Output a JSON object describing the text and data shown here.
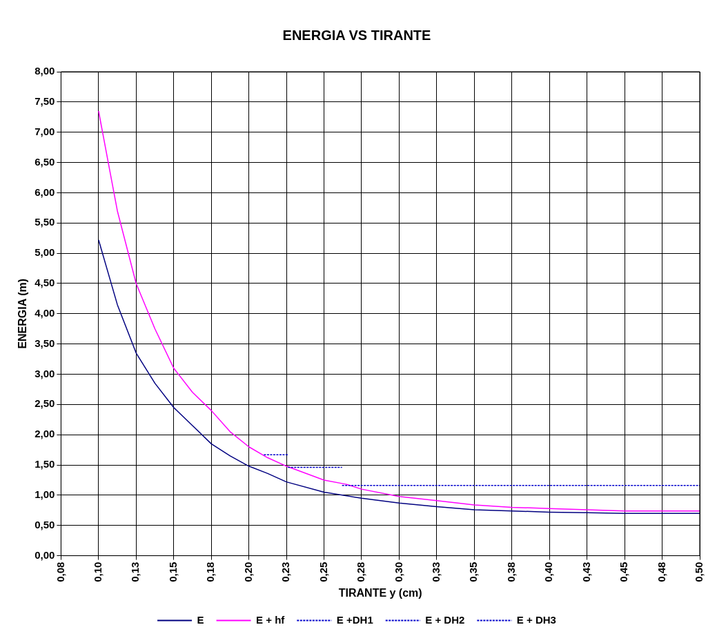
{
  "chart_data": {
    "type": "line",
    "title": "ENERGIA VS TIRANTE",
    "xlabel": "TIRANTE y (cm)",
    "ylabel": "ENERGIA (m)",
    "xlim": [
      0.075,
      0.5
    ],
    "xticks": [
      {
        "value": 0.075,
        "label": "0,08"
      },
      {
        "value": 0.1,
        "label": "0,10"
      },
      {
        "value": 0.125,
        "label": "0,13"
      },
      {
        "value": 0.15,
        "label": "0,15"
      },
      {
        "value": 0.175,
        "label": "0,18"
      },
      {
        "value": 0.2,
        "label": "0,20"
      },
      {
        "value": 0.225,
        "label": "0,23"
      },
      {
        "value": 0.25,
        "label": "0,25"
      },
      {
        "value": 0.275,
        "label": "0,28"
      },
      {
        "value": 0.3,
        "label": "0,30"
      },
      {
        "value": 0.325,
        "label": "0,33"
      },
      {
        "value": 0.35,
        "label": "0,35"
      },
      {
        "value": 0.375,
        "label": "0,38"
      },
      {
        "value": 0.4,
        "label": "0,40"
      },
      {
        "value": 0.425,
        "label": "0,43"
      },
      {
        "value": 0.45,
        "label": "0,45"
      },
      {
        "value": 0.475,
        "label": "0,48"
      },
      {
        "value": 0.5,
        "label": "0,50"
      }
    ],
    "ylim": [
      0,
      8
    ],
    "yticks": [
      {
        "value": 0,
        "label": "0,00"
      },
      {
        "value": 0.5,
        "label": "0,50"
      },
      {
        "value": 1,
        "label": "1,00"
      },
      {
        "value": 1.5,
        "label": "1,50"
      },
      {
        "value": 2,
        "label": "2,00"
      },
      {
        "value": 2.5,
        "label": "2,50"
      },
      {
        "value": 3,
        "label": "3,00"
      },
      {
        "value": 3.5,
        "label": "3,50"
      },
      {
        "value": 4,
        "label": "4,00"
      },
      {
        "value": 4.5,
        "label": "4,50"
      },
      {
        "value": 5,
        "label": "5,00"
      },
      {
        "value": 5.5,
        "label": "5,50"
      },
      {
        "value": 6,
        "label": "6,00"
      },
      {
        "value": 6.5,
        "label": "6,50"
      },
      {
        "value": 7,
        "label": "7,00"
      },
      {
        "value": 7.5,
        "label": "7,50"
      },
      {
        "value": 8,
        "label": "8,00"
      }
    ],
    "grid": true,
    "legend": "bottom",
    "marker": "none",
    "series": [
      {
        "name": "E",
        "color": "#000080",
        "line_style": "solid",
        "x": [
          0.1,
          0.1125,
          0.125,
          0.1375,
          0.15,
          0.1625,
          0.175,
          0.1875,
          0.2,
          0.2125,
          0.225,
          0.25,
          0.275,
          0.3,
          0.325,
          0.35,
          0.375,
          0.4,
          0.425,
          0.45,
          0.5
        ],
        "values": [
          5.22,
          4.15,
          3.35,
          2.85,
          2.45,
          2.15,
          1.85,
          1.65,
          1.48,
          1.36,
          1.22,
          1.05,
          0.95,
          0.87,
          0.81,
          0.76,
          0.74,
          0.72,
          0.71,
          0.7,
          0.7
        ]
      },
      {
        "name": "E + hf",
        "color": "#ff00ff",
        "line_style": "solid",
        "x": [
          0.1,
          0.1125,
          0.125,
          0.1375,
          0.15,
          0.1625,
          0.175,
          0.1875,
          0.2,
          0.2125,
          0.225,
          0.25,
          0.265,
          0.275,
          0.3,
          0.325,
          0.35,
          0.375,
          0.4,
          0.425,
          0.45,
          0.5
        ],
        "values": [
          7.35,
          5.7,
          4.5,
          3.75,
          3.1,
          2.7,
          2.4,
          2.05,
          1.8,
          1.62,
          1.48,
          1.25,
          1.18,
          1.1,
          0.98,
          0.91,
          0.84,
          0.8,
          0.78,
          0.76,
          0.74,
          0.74
        ]
      },
      {
        "name": "E +DH1",
        "color": "#0000cc",
        "line_style": "dashed",
        "x": [
          0.21,
          0.226
        ],
        "values": [
          1.67,
          1.67
        ]
      },
      {
        "name": "E + DH2",
        "color": "#0000cc",
        "line_style": "dashed",
        "x": [
          0.226,
          0.262
        ],
        "values": [
          1.46,
          1.46
        ]
      },
      {
        "name": "E + DH3",
        "color": "#0000cc",
        "line_style": "dashed",
        "x": [
          0.262,
          0.5
        ],
        "values": [
          1.16,
          1.16
        ]
      }
    ]
  }
}
